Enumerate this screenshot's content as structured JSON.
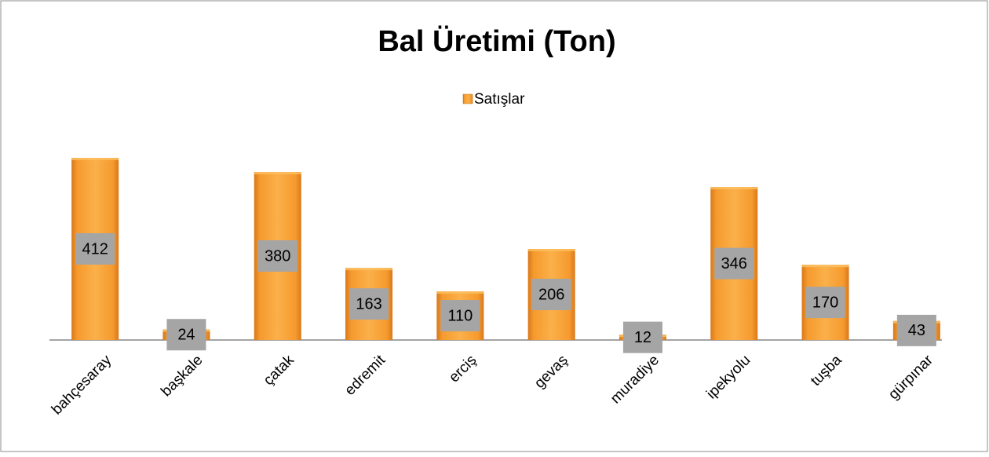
{
  "chart_data": {
    "type": "bar",
    "title": "Bal Üretimi (Ton)",
    "legend": "Satışlar",
    "categories": [
      "bahçesaray",
      "başkale",
      "çatak",
      "edremit",
      "erciş",
      "gevaş",
      "muradiye",
      "ipekyolu",
      "tuşba",
      "gürpınar"
    ],
    "values": [
      412,
      24,
      380,
      163,
      110,
      206,
      12,
      346,
      170,
      43
    ],
    "color": "#f39a2c"
  }
}
